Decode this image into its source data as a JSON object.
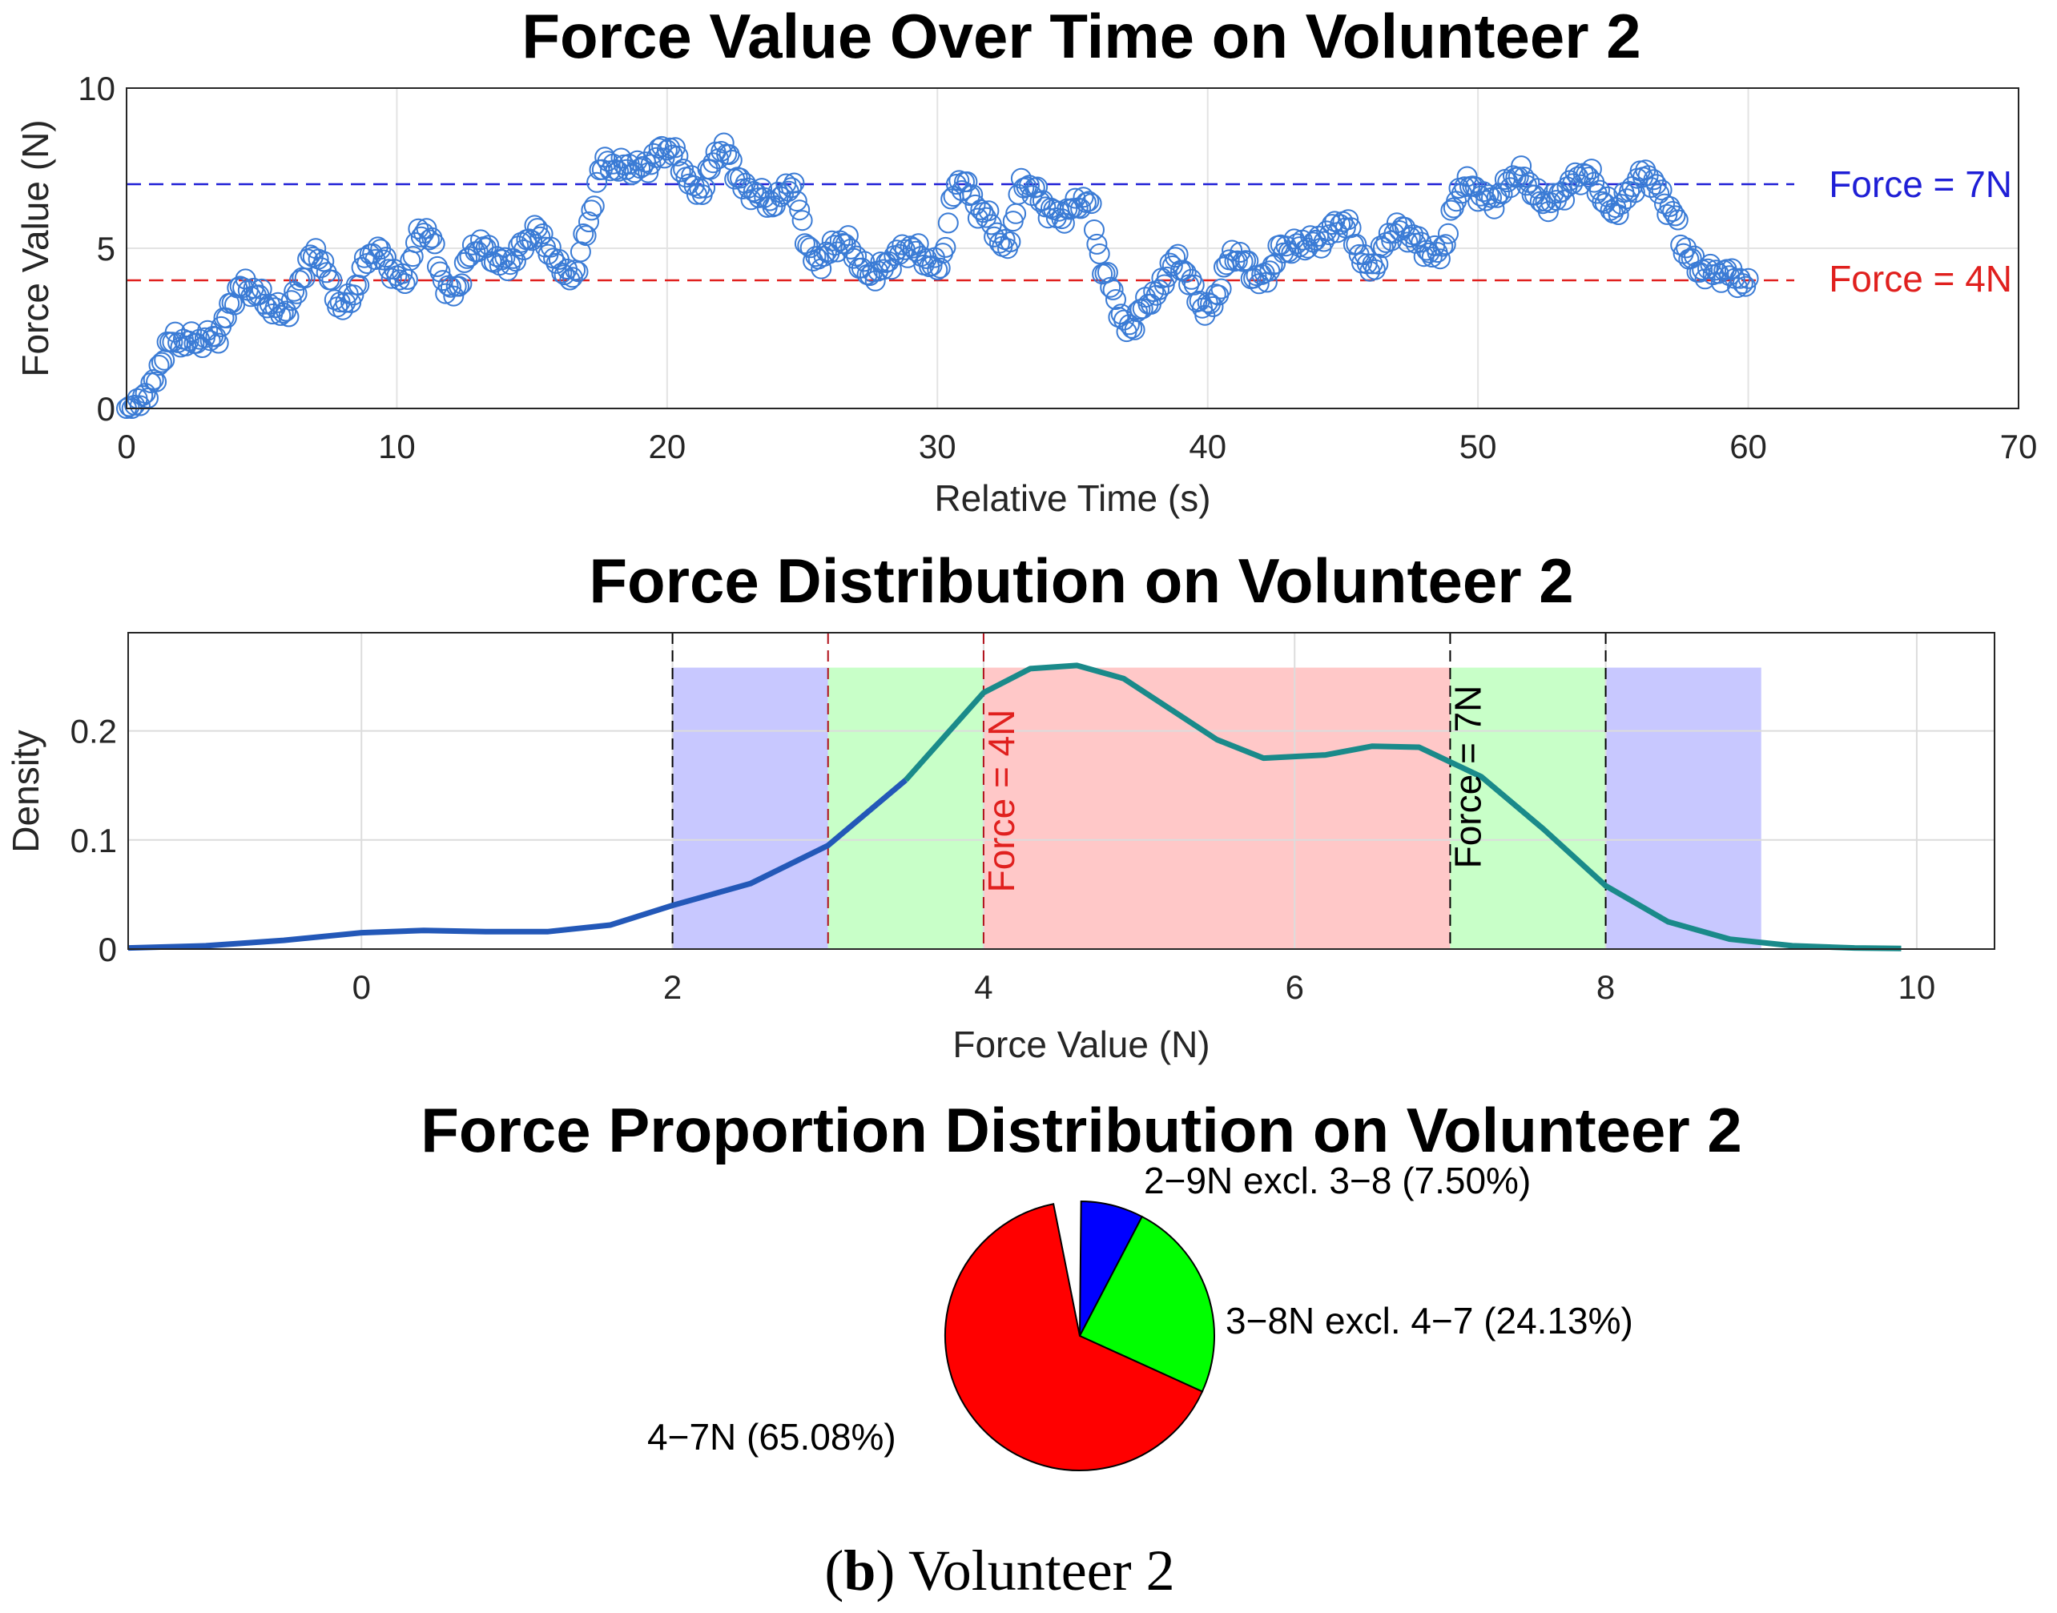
{
  "chart_data": [
    {
      "type": "scatter",
      "title": "Force Value Over Time on Volunteer 2",
      "xlabel": "Relative Time (s)",
      "ylabel": "Force Value (N)",
      "xlim": [
        0,
        70
      ],
      "ylim": [
        0,
        10
      ],
      "xticks": [
        "0",
        "10",
        "20",
        "30",
        "40",
        "50",
        "60",
        "70"
      ],
      "yticks": [
        "0",
        "5",
        "10"
      ],
      "grid": true,
      "marker_color": "#3a7bd5",
      "keyframes": [
        [
          0,
          0
        ],
        [
          0.4,
          0.1
        ],
        [
          1,
          0.8
        ],
        [
          1.6,
          2.1
        ],
        [
          2.5,
          2.1
        ],
        [
          3.2,
          2.2
        ],
        [
          4.3,
          3.8
        ],
        [
          5.8,
          3.0
        ],
        [
          7,
          4.8
        ],
        [
          8,
          3.2
        ],
        [
          9.2,
          4.9
        ],
        [
          10.2,
          4.0
        ],
        [
          11,
          5.6
        ],
        [
          12,
          3.6
        ],
        [
          13,
          5.1
        ],
        [
          14,
          4.5
        ],
        [
          15.2,
          5.5
        ],
        [
          16,
          4.5
        ],
        [
          16.5,
          4.0
        ],
        [
          17,
          5.5
        ],
        [
          17.6,
          7.6
        ],
        [
          19,
          7.5
        ],
        [
          20,
          8.1
        ],
        [
          21.2,
          6.8
        ],
        [
          22,
          8.1
        ],
        [
          23,
          6.8
        ],
        [
          24,
          6.4
        ],
        [
          24.5,
          7.0
        ],
        [
          25.5,
          4.6
        ],
        [
          26.5,
          5.2
        ],
        [
          27.5,
          4.2
        ],
        [
          29,
          5.0
        ],
        [
          30,
          4.4
        ],
        [
          30.8,
          7.1
        ],
        [
          31.8,
          6.0
        ],
        [
          32.5,
          5.0
        ],
        [
          33.2,
          7.0
        ],
        [
          34.5,
          6.0
        ],
        [
          35.5,
          6.5
        ],
        [
          36.3,
          4.0
        ],
        [
          37,
          2.5
        ],
        [
          38,
          3.5
        ],
        [
          38.8,
          4.6
        ],
        [
          40,
          3.1
        ],
        [
          41,
          4.8
        ],
        [
          42,
          4.0
        ],
        [
          42.8,
          5.0
        ],
        [
          44,
          5.2
        ],
        [
          45,
          5.8
        ],
        [
          46,
          4.4
        ],
        [
          47,
          5.6
        ],
        [
          48.5,
          4.8
        ],
        [
          49.5,
          7.0
        ],
        [
          50.5,
          6.5
        ],
        [
          51.5,
          7.3
        ],
        [
          52.5,
          6.4
        ],
        [
          54,
          7.3
        ],
        [
          55,
          6.2
        ],
        [
          56.2,
          7.3
        ],
        [
          57.2,
          6.2
        ],
        [
          57.6,
          5.0
        ],
        [
          58.2,
          4.3
        ],
        [
          59.3,
          4.2
        ],
        [
          60,
          3.8
        ]
      ],
      "reference_lines": [
        {
          "value": 7,
          "label": "Force = 7N",
          "color": "#1f1fd6"
        },
        {
          "value": 4,
          "label": "Force = 4N",
          "color": "#e0201e"
        }
      ]
    },
    {
      "type": "area",
      "title": "Force Distribution on Volunteer 2",
      "xlabel": "Force Value (N)",
      "ylabel": "Density",
      "xlim": [
        -1.5,
        10.5
      ],
      "ylim": [
        0,
        0.29
      ],
      "xticks": [
        "0",
        "2",
        "4",
        "6",
        "8",
        "10"
      ],
      "yticks": [
        "0",
        "0.1",
        "0.2"
      ],
      "grid": true,
      "curve_color_left": "#2358b8",
      "curve_color_right": "#1a8a8a",
      "density_x": [
        -1.5,
        -1,
        -0.5,
        0,
        0.4,
        0.8,
        1.2,
        1.6,
        2,
        2.5,
        3,
        3.5,
        4,
        4.3,
        4.6,
        4.9,
        5.2,
        5.5,
        5.8,
        6.2,
        6.5,
        6.8,
        7.2,
        7.6,
        8,
        8.4,
        8.8,
        9.2,
        9.6,
        9.9
      ],
      "density_y": [
        0.001,
        0.003,
        0.008,
        0.015,
        0.017,
        0.016,
        0.016,
        0.022,
        0.04,
        0.06,
        0.095,
        0.155,
        0.235,
        0.257,
        0.26,
        0.248,
        0.22,
        0.192,
        0.175,
        0.178,
        0.186,
        0.185,
        0.158,
        0.11,
        0.058,
        0.025,
        0.009,
        0.003,
        0.001,
        0.0005
      ],
      "band_top": 0.258,
      "bands": [
        {
          "from": 2,
          "to": 3,
          "color": "#c8c8ff"
        },
        {
          "from": 3,
          "to": 4,
          "color": "#c8ffc8"
        },
        {
          "from": 4,
          "to": 7,
          "color": "#ffc8c8"
        },
        {
          "from": 7,
          "to": 8,
          "color": "#c8ffc8"
        },
        {
          "from": 8,
          "to": 9,
          "color": "#c8c8ff"
        }
      ],
      "boundaries": [
        {
          "value": 2,
          "color": "#000000"
        },
        {
          "value": 3,
          "color": "#b0101a"
        },
        {
          "value": 4,
          "color": "#b0101a"
        },
        {
          "value": 7,
          "color": "#000000"
        },
        {
          "value": 8,
          "color": "#000000"
        }
      ],
      "annotations": [
        {
          "text": "Force = 4N",
          "x": 4,
          "color": "#e0201e"
        },
        {
          "text": "Force = 7N",
          "x": 7,
          "color": "#000000"
        }
      ]
    },
    {
      "type": "pie",
      "title": "Force Proportion Distribution on Volunteer 2",
      "slices": [
        {
          "name": "2−9N excl. 3−8",
          "value": 7.5,
          "label": "2−9N excl. 3−8 (7.50%)",
          "color": "#0000ff"
        },
        {
          "name": "3−8N excl. 4−7",
          "value": 24.13,
          "label": "3−8N excl. 4−7 (24.13%)",
          "color": "#00ff00"
        },
        {
          "name": "4−7N",
          "value": 65.08,
          "label": "4−7N (65.08%)",
          "color": "#ff0000"
        }
      ]
    }
  ],
  "caption": {
    "letter": "b",
    "open": "(",
    "close": ")",
    "text": " Volunteer 2"
  }
}
